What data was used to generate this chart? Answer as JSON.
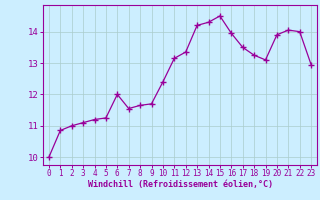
{
  "x": [
    0,
    1,
    2,
    3,
    4,
    5,
    6,
    7,
    8,
    9,
    10,
    11,
    12,
    13,
    14,
    15,
    16,
    17,
    18,
    19,
    20,
    21,
    22,
    23
  ],
  "y": [
    10.0,
    10.85,
    11.0,
    11.1,
    11.2,
    11.25,
    12.0,
    11.55,
    11.65,
    11.7,
    12.4,
    13.15,
    13.35,
    14.2,
    14.3,
    14.5,
    13.95,
    13.5,
    13.25,
    13.1,
    13.9,
    14.05,
    14.0,
    12.95
  ],
  "line_color": "#990099",
  "marker": "+",
  "marker_size": 4,
  "bg_color": "#cceeff",
  "grid_color": "#aacccc",
  "xlabel": "Windchill (Refroidissement éolien,°C)",
  "xlabel_color": "#990099",
  "tick_color": "#990099",
  "ylim": [
    9.75,
    14.85
  ],
  "xlim": [
    -0.5,
    23.5
  ],
  "yticks": [
    10,
    11,
    12,
    13,
    14
  ],
  "xticks": [
    0,
    1,
    2,
    3,
    4,
    5,
    6,
    7,
    8,
    9,
    10,
    11,
    12,
    13,
    14,
    15,
    16,
    17,
    18,
    19,
    20,
    21,
    22,
    23
  ]
}
